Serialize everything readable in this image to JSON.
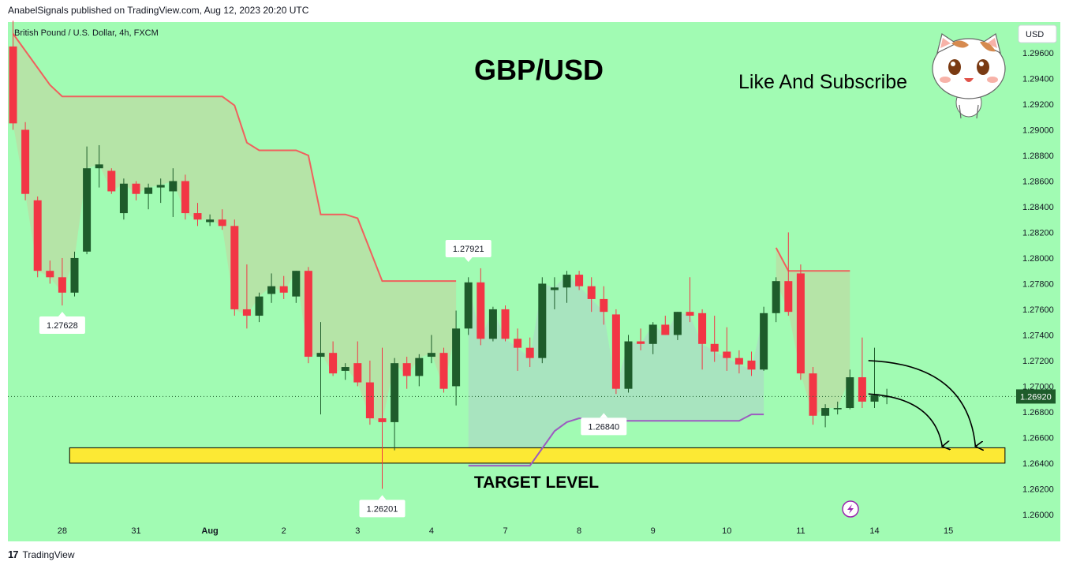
{
  "header": {
    "publisher_line": "AnabelSignals published on TradingView.com, Aug 12, 2023 20:20 UTC"
  },
  "footer": {
    "brand": "TradingView",
    "logo_glyph": "17"
  },
  "colors": {
    "background": "#a1fbb3",
    "bull": "#1e5c2b",
    "bear": "#f23645",
    "upper_band": "#f0605d",
    "lower_band": "#9c5cc0",
    "upper_fill": "#b9dfa5",
    "lower_fill": "#a9dfc1",
    "target_zone": "#fce934",
    "price_label": "#1e5c2b"
  },
  "chart_data": {
    "type": "candlestick",
    "symbol_line": "British Pound / U.S. Dollar, 4h, FXCM",
    "currency_button": "USD",
    "title": "GBP/USD",
    "annotation_subscribe": "Like And Subscribe",
    "target_label": "TARGET LEVEL",
    "y_range": [
      1.2595,
      1.2984
    ],
    "y_ticks": [
      "1.29600",
      "1.29400",
      "1.29200",
      "1.29000",
      "1.28800",
      "1.28600",
      "1.28400",
      "1.28200",
      "1.28000",
      "1.27800",
      "1.27600",
      "1.27400",
      "1.27200",
      "1.27000",
      "1.26800",
      "1.26600",
      "1.26400",
      "1.26200",
      "1.26000"
    ],
    "x_labels": [
      {
        "label": "28",
        "i": 4
      },
      {
        "label": "31",
        "i": 10
      },
      {
        "label": "Aug",
        "i": 16
      },
      {
        "label": "2",
        "i": 22
      },
      {
        "label": "3",
        "i": 28
      },
      {
        "label": "4",
        "i": 34
      },
      {
        "label": "7",
        "i": 40
      },
      {
        "label": "8",
        "i": 46
      },
      {
        "label": "9",
        "i": 52
      },
      {
        "label": "10",
        "i": 58
      },
      {
        "label": "11",
        "i": 64
      },
      {
        "label": "14",
        "i": 70
      },
      {
        "label": "15",
        "i": 76
      }
    ],
    "current_price": "1.26920",
    "current_price_value": 1.2692,
    "candles": [
      [
        1.2965,
        1.2985,
        1.29,
        1.2905
      ],
      [
        1.29,
        1.2906,
        1.2845,
        1.285
      ],
      [
        1.2845,
        1.2848,
        1.2785,
        1.279
      ],
      [
        1.279,
        1.2798,
        1.278,
        1.2785
      ],
      [
        1.2785,
        1.28,
        1.2763,
        1.2773
      ],
      [
        1.2773,
        1.2805,
        1.277,
        1.28
      ],
      [
        1.2805,
        1.2887,
        1.2803,
        1.287
      ],
      [
        1.287,
        1.2888,
        1.2855,
        1.2873
      ],
      [
        1.2868,
        1.287,
        1.285,
        1.2852
      ],
      [
        1.2835,
        1.2862,
        1.283,
        1.2858
      ],
      [
        1.2858,
        1.286,
        1.2845,
        1.285
      ],
      [
        1.285,
        1.2858,
        1.2838,
        1.2855
      ],
      [
        1.2855,
        1.2862,
        1.2843,
        1.2857
      ],
      [
        1.2852,
        1.287,
        1.2832,
        1.286
      ],
      [
        1.286,
        1.2865,
        1.283,
        1.2835
      ],
      [
        1.2835,
        1.2843,
        1.2825,
        1.283
      ],
      [
        1.2828,
        1.2834,
        1.2825,
        1.283
      ],
      [
        1.283,
        1.2838,
        1.2822,
        1.2825
      ],
      [
        1.2825,
        1.283,
        1.2755,
        1.276
      ],
      [
        1.276,
        1.2795,
        1.2745,
        1.2755
      ],
      [
        1.2755,
        1.2773,
        1.275,
        1.277
      ],
      [
        1.2772,
        1.2788,
        1.2765,
        1.2778
      ],
      [
        1.2778,
        1.2786,
        1.2768,
        1.2773
      ],
      [
        1.277,
        1.279,
        1.2765,
        1.279
      ],
      [
        1.279,
        1.2793,
        1.2718,
        1.2723
      ],
      [
        1.2723,
        1.275,
        1.2678,
        1.2726
      ],
      [
        1.2726,
        1.2735,
        1.2708,
        1.271
      ],
      [
        1.2712,
        1.2718,
        1.2705,
        1.2715
      ],
      [
        1.2718,
        1.2735,
        1.27,
        1.2703
      ],
      [
        1.2703,
        1.272,
        1.267,
        1.2675
      ],
      [
        1.2675,
        1.273,
        1.262,
        1.2672
      ],
      [
        1.2672,
        1.2722,
        1.265,
        1.2718
      ],
      [
        1.2718,
        1.2723,
        1.2698,
        1.2708
      ],
      [
        1.2708,
        1.2725,
        1.27,
        1.2722
      ],
      [
        1.2723,
        1.274,
        1.2718,
        1.2726
      ],
      [
        1.2726,
        1.273,
        1.2695,
        1.2698
      ],
      [
        1.27,
        1.2759,
        1.2685,
        1.2745
      ],
      [
        1.2745,
        1.2785,
        1.274,
        1.2781
      ],
      [
        1.2781,
        1.2792,
        1.2732,
        1.2737
      ],
      [
        1.2737,
        1.2762,
        1.2735,
        1.276
      ],
      [
        1.276,
        1.2763,
        1.2735,
        1.2737
      ],
      [
        1.2737,
        1.2745,
        1.2712,
        1.273
      ],
      [
        1.273,
        1.2738,
        1.2715,
        1.2722
      ],
      [
        1.2722,
        1.2785,
        1.2718,
        1.278
      ],
      [
        1.2775,
        1.2785,
        1.276,
        1.2777
      ],
      [
        1.2777,
        1.279,
        1.2765,
        1.2787
      ],
      [
        1.2787,
        1.279,
        1.2775,
        1.2778
      ],
      [
        1.2778,
        1.2785,
        1.2758,
        1.2768
      ],
      [
        1.2768,
        1.2778,
        1.2748,
        1.2758
      ],
      [
        1.2756,
        1.276,
        1.2694,
        1.2698
      ],
      [
        1.2698,
        1.274,
        1.2695,
        1.2735
      ],
      [
        1.2735,
        1.2745,
        1.2728,
        1.2733
      ],
      [
        1.2733,
        1.275,
        1.2725,
        1.2748
      ],
      [
        1.2748,
        1.2755,
        1.274,
        1.274
      ],
      [
        1.274,
        1.2758,
        1.2736,
        1.2758
      ],
      [
        1.2758,
        1.2785,
        1.275,
        1.2755
      ],
      [
        1.2757,
        1.276,
        1.2713,
        1.2733
      ],
      [
        1.2733,
        1.2755,
        1.2719,
        1.2727
      ],
      [
        1.2727,
        1.2746,
        1.2712,
        1.2722
      ],
      [
        1.2722,
        1.2728,
        1.271,
        1.2717
      ],
      [
        1.272,
        1.2727,
        1.2708,
        1.2713
      ],
      [
        1.2713,
        1.2762,
        1.2712,
        1.2757
      ],
      [
        1.2757,
        1.2785,
        1.275,
        1.2782
      ],
      [
        1.2782,
        1.282,
        1.2755,
        1.2758
      ],
      [
        1.2788,
        1.2795,
        1.2705,
        1.271
      ],
      [
        1.271,
        1.2715,
        1.267,
        1.2677
      ],
      [
        1.2677,
        1.2686,
        1.2668,
        1.2683
      ],
      [
        1.2682,
        1.2688,
        1.2678,
        1.2683
      ],
      [
        1.2683,
        1.2713,
        1.2682,
        1.2707
      ],
      [
        1.2707,
        1.2738,
        1.2683,
        1.2688
      ],
      [
        1.2688,
        1.273,
        1.2683,
        1.2693
      ],
      [
        1.2692,
        1.2698,
        1.2686,
        1.2692
      ]
    ],
    "upper_band": [
      [
        0,
        1.2975
      ],
      [
        3,
        1.2935
      ],
      [
        4,
        1.2926
      ],
      [
        17,
        1.2926
      ],
      [
        18,
        1.2919
      ],
      [
        19,
        1.289
      ],
      [
        20,
        1.2884
      ],
      [
        23,
        1.2884
      ],
      [
        24,
        1.288
      ],
      [
        25,
        1.2834
      ],
      [
        27,
        1.2834
      ],
      [
        28,
        1.2831
      ],
      [
        30,
        1.2782
      ],
      [
        36,
        1.2782
      ]
    ],
    "upper_band_2": [
      [
        62,
        1.2808
      ],
      [
        63,
        1.279
      ],
      [
        68,
        1.279
      ]
    ],
    "lower_band": [
      [
        37,
        1.2638
      ],
      [
        42,
        1.2638
      ],
      [
        44,
        1.2665
      ],
      [
        45,
        1.2672
      ],
      [
        46,
        1.2675
      ],
      [
        48,
        1.2673
      ],
      [
        59,
        1.2673
      ],
      [
        60,
        1.2678
      ],
      [
        61,
        1.2678
      ]
    ],
    "target_zone": [
      1.264,
      1.2652
    ],
    "target_zone_x": [
      4.6,
      80.6
    ],
    "price_callouts": [
      {
        "text": "1.27628",
        "i": 4,
        "price": 1.2763,
        "pos": "below"
      },
      {
        "text": "1.26201",
        "i": 30,
        "price": 1.262,
        "pos": "below"
      },
      {
        "text": "1.27921",
        "i": 37,
        "price": 1.2792,
        "pos": "above"
      },
      {
        "text": "1.26840",
        "i": 48,
        "price": 1.2684,
        "pos": "below"
      }
    ],
    "arrows": [
      {
        "from": [
          69.5,
          1.272
        ],
        "to": [
          78.2,
          1.2653
        ]
      },
      {
        "from": [
          69.5,
          1.2694
        ],
        "to": [
          75.5,
          1.2653
        ]
      }
    ]
  }
}
